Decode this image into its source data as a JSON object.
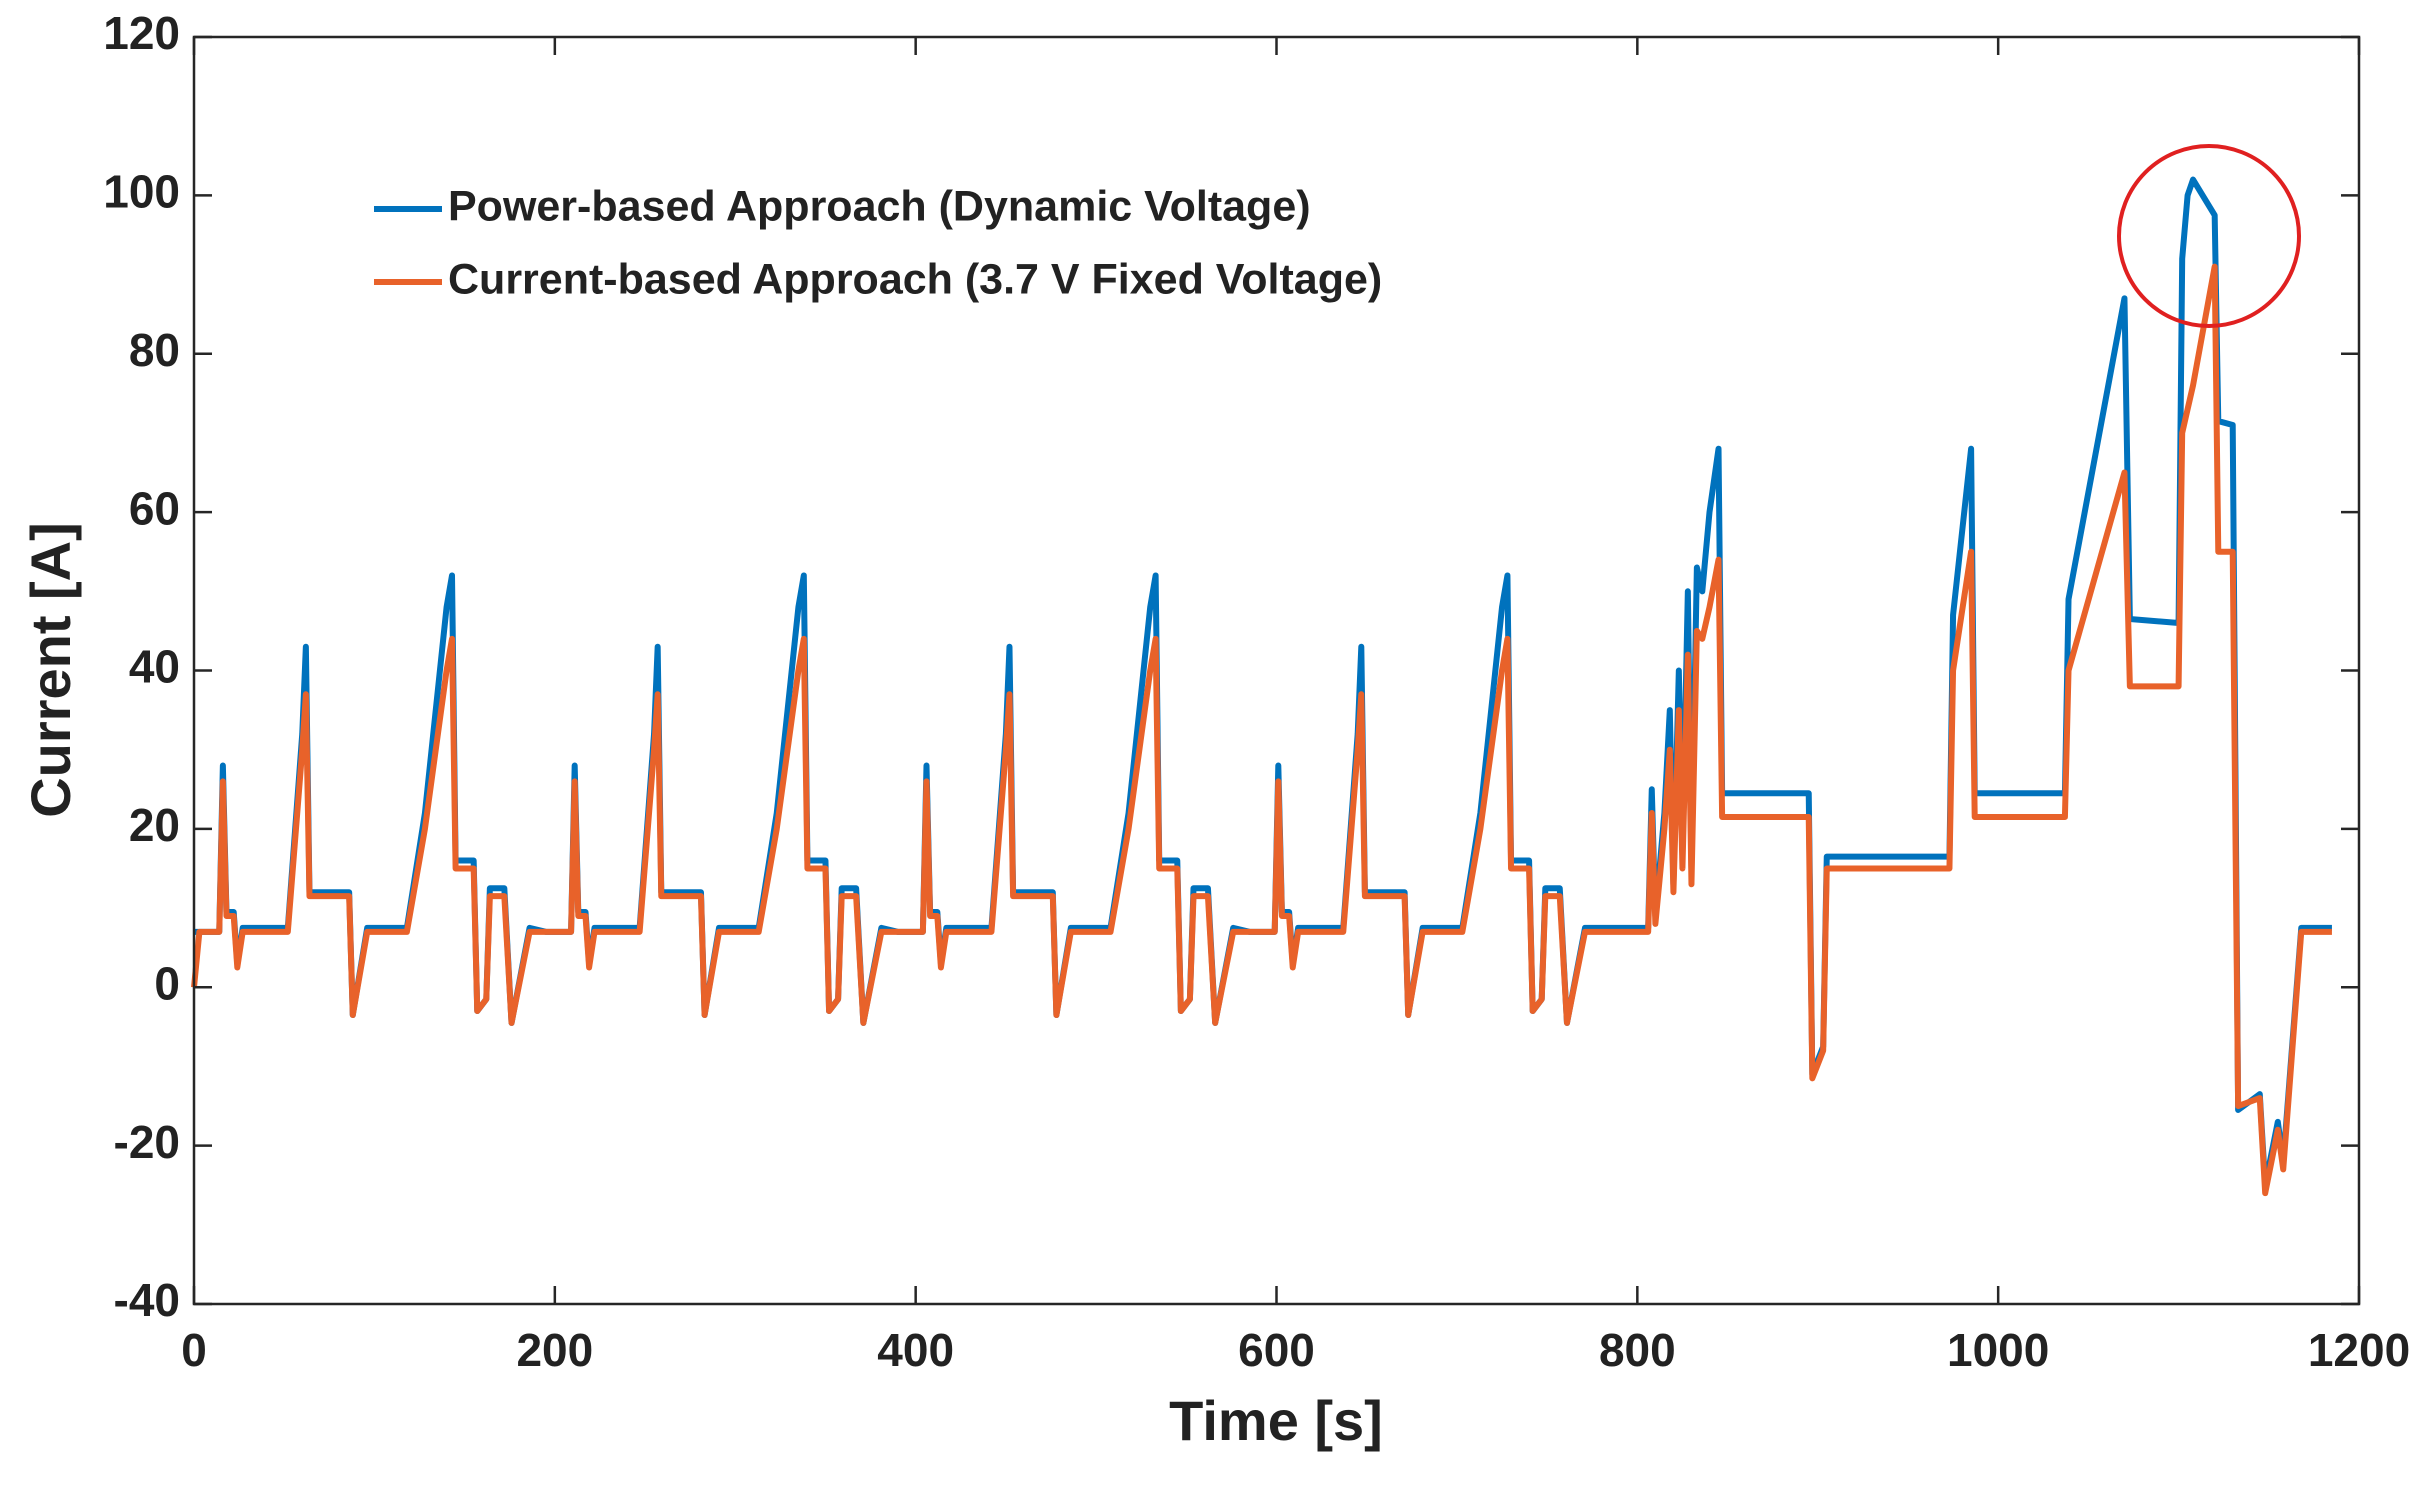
{
  "chart_data": {
    "type": "line",
    "xlabel": "Time [s]",
    "ylabel": "Current [A]",
    "x": [
      0,
      3,
      14,
      16,
      18,
      22,
      24,
      27,
      52,
      60,
      62,
      64,
      86,
      88,
      96,
      118,
      128,
      140,
      143,
      145,
      155,
      157,
      162,
      164,
      172,
      176,
      186,
      195,
      198,
      209,
      211,
      213,
      217,
      219,
      222,
      247,
      255,
      257,
      259,
      281,
      283,
      291,
      313,
      323,
      335,
      338,
      340,
      350,
      352,
      357,
      359,
      367,
      371,
      381,
      390,
      393,
      404,
      406,
      408,
      412,
      414,
      417,
      442,
      450,
      452,
      454,
      476,
      478,
      486,
      508,
      518,
      530,
      533,
      535,
      545,
      547,
      552,
      554,
      562,
      566,
      576,
      585,
      588,
      599,
      601,
      603,
      607,
      609,
      612,
      637,
      645,
      647,
      649,
      671,
      673,
      681,
      703,
      713,
      725,
      728,
      730,
      740,
      742,
      747,
      749,
      757,
      761,
      771,
      780,
      806,
      808,
      810,
      815,
      818,
      820,
      823,
      825,
      828,
      830,
      833,
      836,
      840,
      845,
      847,
      895,
      897,
      903,
      905,
      973,
      975,
      985,
      987,
      1037,
      1039,
      1070,
      1073,
      1100,
      1102,
      1105,
      1108,
      1120,
      1122,
      1130,
      1133,
      1145,
      1148,
      1155,
      1158,
      1168,
      1185
    ],
    "series": [
      {
        "name": "Power-based Approach (Dynamic Voltage)",
        "color": "#0072bd",
        "values": [
          7,
          7,
          7,
          28,
          9.5,
          9.5,
          3,
          7.5,
          7.5,
          32,
          43,
          12,
          12,
          -3.5,
          7.5,
          7.5,
          22,
          48,
          52,
          16,
          16,
          -3,
          -1.5,
          12.5,
          12.5,
          -4.5,
          7.5,
          7,
          7,
          7,
          28,
          9.5,
          9.5,
          3,
          7.5,
          7.5,
          32,
          43,
          12,
          12,
          -3.5,
          7.5,
          7.5,
          22,
          48,
          52,
          16,
          16,
          -3,
          -1.5,
          12.5,
          12.5,
          -4.5,
          7.5,
          7,
          7,
          7,
          28,
          9.5,
          9.5,
          3,
          7.5,
          7.5,
          32,
          43,
          12,
          12,
          -3.5,
          7.5,
          7.5,
          22,
          48,
          52,
          16,
          16,
          -3,
          -1.5,
          12.5,
          12.5,
          -4.5,
          7.5,
          7,
          7,
          7,
          28,
          9.5,
          9.5,
          3,
          7.5,
          7.5,
          32,
          43,
          12,
          12,
          -3.5,
          7.5,
          7.5,
          22,
          48,
          52,
          16,
          16,
          -3,
          -1.5,
          12.5,
          12.5,
          -4.5,
          7.5,
          7.5,
          7.5,
          25,
          9,
          22,
          35,
          13,
          40,
          17,
          50,
          15,
          53,
          50,
          60,
          68,
          24.5,
          24.5,
          -11,
          -7.5,
          16.5,
          16.5,
          47,
          68,
          24.5,
          24.5,
          49,
          87,
          46.5,
          46,
          92,
          100,
          102,
          97.5,
          71.5,
          71,
          -15.5,
          -13.5,
          -25,
          -17,
          -22,
          7.5,
          7.5
        ]
      },
      {
        "name": "Current-based Approach (3.7 V Fixed Voltage)",
        "color": "#e8622a",
        "values": [
          0,
          7,
          7,
          26,
          9,
          9,
          2.5,
          7,
          7,
          30,
          37,
          11.5,
          11.5,
          -3.5,
          7,
          7,
          20,
          40,
          44,
          15,
          15,
          -3,
          -1.5,
          11.5,
          11.5,
          -4.5,
          7,
          7,
          7,
          7,
          26,
          9,
          9,
          2.5,
          7,
          7,
          30,
          37,
          11.5,
          11.5,
          -3.5,
          7,
          7,
          20,
          40,
          44,
          15,
          15,
          -3,
          -1.5,
          11.5,
          11.5,
          -4.5,
          7,
          7,
          7,
          7,
          26,
          9,
          9,
          2.5,
          7,
          7,
          30,
          37,
          11.5,
          11.5,
          -3.5,
          7,
          7,
          20,
          40,
          44,
          15,
          15,
          -3,
          -1.5,
          11.5,
          11.5,
          -4.5,
          7,
          7,
          7,
          7,
          26,
          9,
          9,
          2.5,
          7,
          7,
          30,
          37,
          11.5,
          11.5,
          -3.5,
          7,
          7,
          20,
          40,
          44,
          15,
          15,
          -3,
          -1.5,
          11.5,
          11.5,
          -4.5,
          7,
          7,
          7,
          22,
          8,
          20,
          30,
          12,
          35,
          15,
          42,
          13,
          45,
          44,
          48,
          54,
          21.5,
          21.5,
          -11.5,
          -8,
          15,
          15,
          40,
          55,
          21.5,
          21.5,
          40,
          65,
          38,
          38,
          70,
          73,
          76,
          91,
          55,
          55,
          -15,
          -14,
          -26,
          -18,
          -23,
          7,
          7
        ]
      }
    ],
    "xlim": [
      0,
      1200
    ],
    "xticks": [
      0,
      200,
      400,
      600,
      800,
      1000,
      1200
    ],
    "ylim": [
      -40,
      120
    ],
    "yticks": [
      -40,
      -20,
      0,
      20,
      40,
      60,
      80,
      100,
      120
    ],
    "grid": false,
    "legend": "upper left"
  }
}
